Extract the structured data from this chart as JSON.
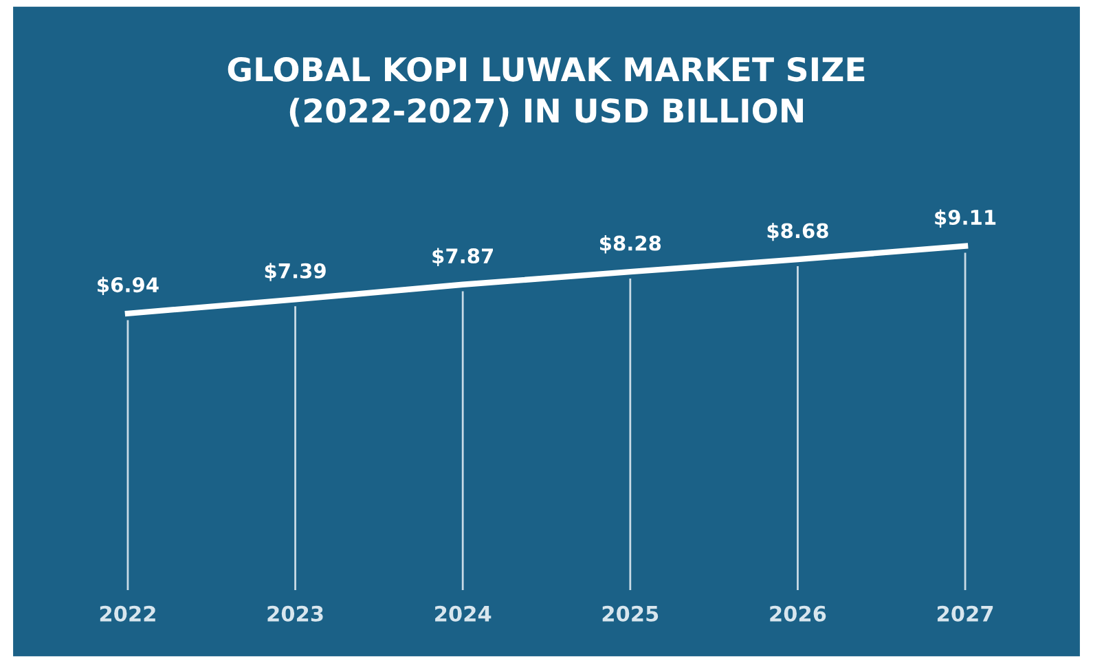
{
  "chart_data": {
    "type": "line",
    "title": "GLOBAL KOPI LUWAK MARKET SIZE\n(2022-2027) IN USD BILLION",
    "categories": [
      "2022",
      "2023",
      "2024",
      "2025",
      "2026",
      "2027"
    ],
    "series": [
      {
        "color": "#ffffff",
        "values": [
          6.94,
          7.39,
          7.87,
          8.28,
          8.68,
          9.11
        ],
        "value_labels": [
          "$6.94",
          "$7.39",
          "$7.87",
          "$8.28",
          "$8.68",
          "$9.11"
        ]
      }
    ],
    "grid": "x",
    "line_style": "solid"
  }
}
